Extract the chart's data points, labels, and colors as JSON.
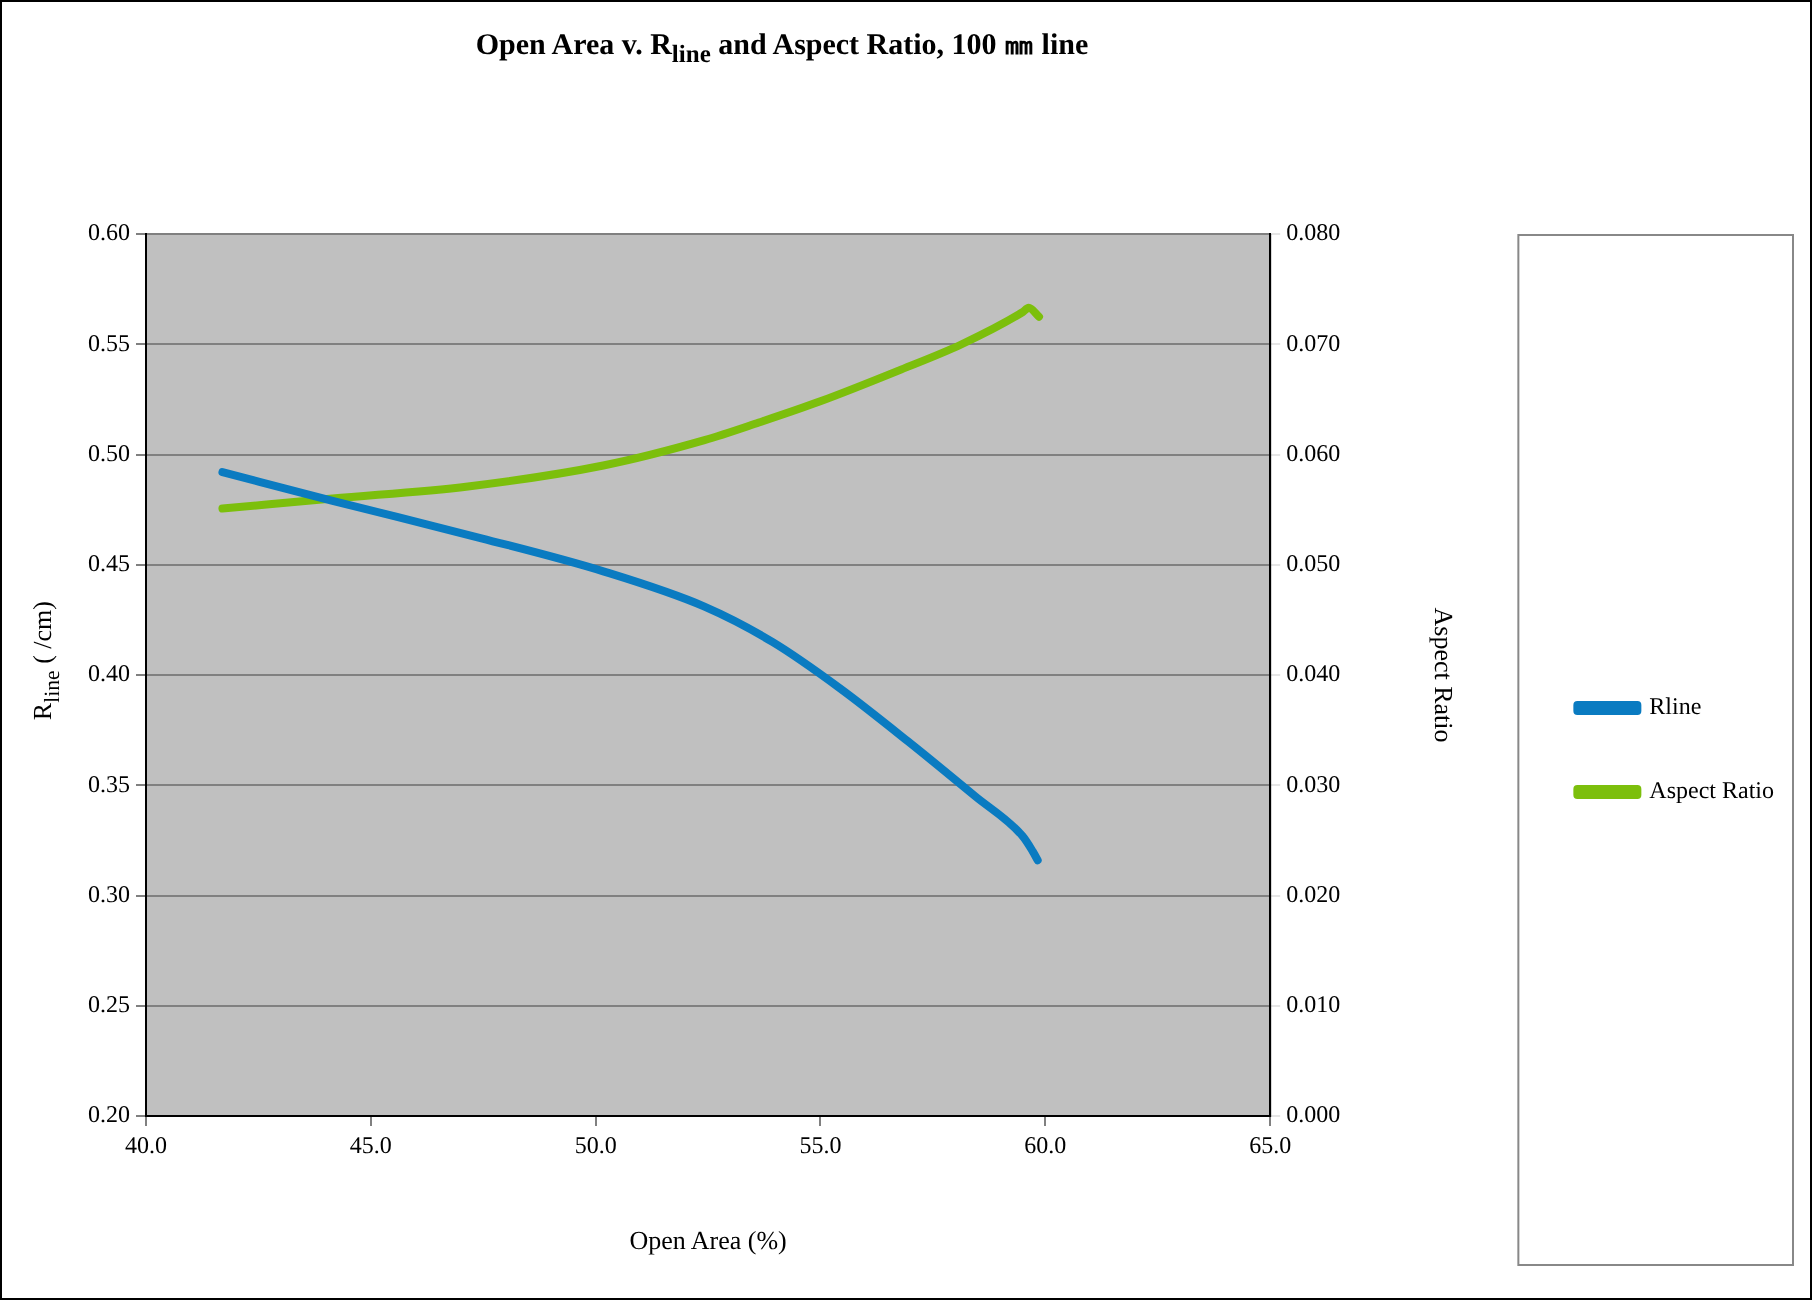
{
  "chart_data": {
    "type": "line",
    "title": "Open Area v. R$_{line}$ and Aspect Ratio, 100 ㎜ line",
    "xlabel": "Open Area (%)",
    "ylabel": "R$_{line}$ (  /cm)",
    "y2label": "Aspect Ratio",
    "xlim": [
      40,
      65
    ],
    "xticks": [
      {
        "value": 40,
        "label": "40.0"
      },
      {
        "value": 45,
        "label": "45.0"
      },
      {
        "value": 50,
        "label": "50.0"
      },
      {
        "value": 55,
        "label": "55.0"
      },
      {
        "value": 60,
        "label": "60.0"
      },
      {
        "value": 65,
        "label": "65.0"
      }
    ],
    "ylim": [
      0.2,
      0.6
    ],
    "yticks": [
      {
        "value": 0.2,
        "label": "0.20"
      },
      {
        "value": 0.25,
        "label": "0.25"
      },
      {
        "value": 0.3,
        "label": "0.30"
      },
      {
        "value": 0.35,
        "label": "0.35"
      },
      {
        "value": 0.4,
        "label": "0.40"
      },
      {
        "value": 0.45,
        "label": "0.45"
      },
      {
        "value": 0.5,
        "label": "0.50"
      },
      {
        "value": 0.55,
        "label": "0.55"
      },
      {
        "value": 0.6,
        "label": "0.60"
      }
    ],
    "y2lim": [
      0,
      0.08
    ],
    "y2ticks": [
      {
        "value": 0,
        "label": "0.000"
      },
      {
        "value": 0.01,
        "label": "0.010"
      },
      {
        "value": 0.02,
        "label": "0.020"
      },
      {
        "value": 0.03,
        "label": "0.030"
      },
      {
        "value": 0.04,
        "label": "0.040"
      },
      {
        "value": 0.05,
        "label": "0.050"
      },
      {
        "value": 0.06,
        "label": "0.060"
      },
      {
        "value": 0.07,
        "label": "0.070"
      },
      {
        "value": 0.08,
        "label": "0.080"
      }
    ],
    "series": [
      {
        "name": "Rline",
        "color": "#0a7bc1",
        "x": [
          41.7,
          44.15,
          47.46,
          50.17,
          52.42,
          53.93,
          55.43,
          56.94,
          58.44,
          59.49,
          59.72,
          59.83
        ],
        "values": [
          0.492,
          0.479,
          0.462,
          0.447,
          0.431,
          0.415,
          0.394,
          0.37,
          0.345,
          0.327,
          0.32,
          0.316
        ]
      },
      {
        "name": "Aspect Ratio",
        "color": "#7cbf0c",
        "axis": "y2",
        "x": [
          41.7,
          44.15,
          47.16,
          50.17,
          52.42,
          53.63,
          54.98,
          56.79,
          58.14,
          59.49,
          59.63,
          59.86
        ],
        "values": [
          0.0551,
          0.056,
          0.0571,
          0.059,
          0.0613,
          0.0629,
          0.0648,
          0.0677,
          0.07,
          0.0729,
          0.0733,
          0.0725
        ]
      }
    ],
    "grid": "y",
    "legend": "right",
    "marker": "none",
    "line_style": "solid"
  }
}
